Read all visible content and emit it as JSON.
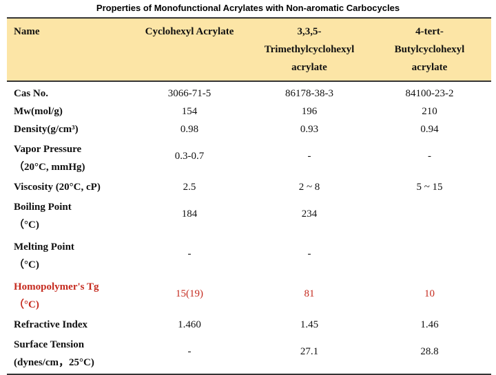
{
  "title": "Properties of Monofunctional Acrylates with Non-aromatic Carbocycles",
  "header": {
    "name": "Name",
    "cols": [
      [
        "Cyclohexyl Acrylate"
      ],
      [
        "3,3,5-",
        "Trimethylcyclohexyl",
        "acrylate"
      ],
      [
        "4-tert-",
        "Butylcyclohexyl",
        "acrylate"
      ]
    ]
  },
  "colors": {
    "header_bg": "#fce5a6",
    "highlight": "#c52a1e"
  },
  "rows": [
    {
      "label": [
        "Cas No."
      ],
      "values": [
        "3066-71-5",
        "86178-38-3",
        "84100-23-2"
      ]
    },
    {
      "label": [
        "Mw(mol/g)"
      ],
      "values": [
        "154",
        "196",
        "210"
      ]
    },
    {
      "label": [
        "Density(g/cm³)"
      ],
      "values": [
        "0.98",
        "0.93",
        "0.94"
      ]
    },
    {
      "label": [
        "Vapor Pressure",
        "（20°C, mmHg)"
      ],
      "values": [
        "0.3-0.7",
        "-",
        "-"
      ]
    },
    {
      "label": [
        "Viscosity (20°C, cP)"
      ],
      "values": [
        "2.5",
        "2 ~ 8",
        "5 ~ 15"
      ]
    },
    {
      "label": [
        "Boiling Point",
        "（°C)"
      ],
      "values": [
        "184",
        "234",
        ""
      ]
    },
    {
      "label": [
        "Melting Point",
        "（°C)"
      ],
      "values": [
        "-",
        "-",
        ""
      ]
    },
    {
      "label": [
        "Homopolymer's Tg",
        "（°C)"
      ],
      "values": [
        "15(19)",
        "81",
        "10"
      ],
      "highlight": true
    },
    {
      "label": [
        "Refractive Index"
      ],
      "values": [
        "1.460",
        "1.45",
        "1.46"
      ]
    },
    {
      "label": [
        "Surface Tension",
        "(dynes/cm，25°C)"
      ],
      "values": [
        "-",
        "27.1",
        "28.8"
      ]
    }
  ]
}
